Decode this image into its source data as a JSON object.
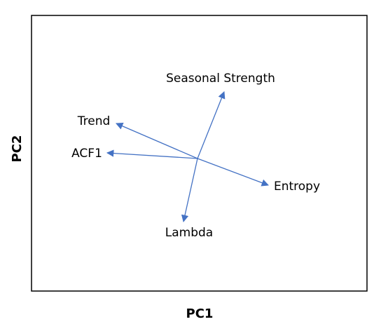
{
  "axes": {
    "x_label": "PC1",
    "y_label": "PC2"
  },
  "nodes": [
    {
      "label": "Seasonal Strength"
    },
    {
      "label": "Trend"
    },
    {
      "label": "ACF1"
    },
    {
      "label": "Entropy"
    },
    {
      "label": "Lambda"
    }
  ]
}
